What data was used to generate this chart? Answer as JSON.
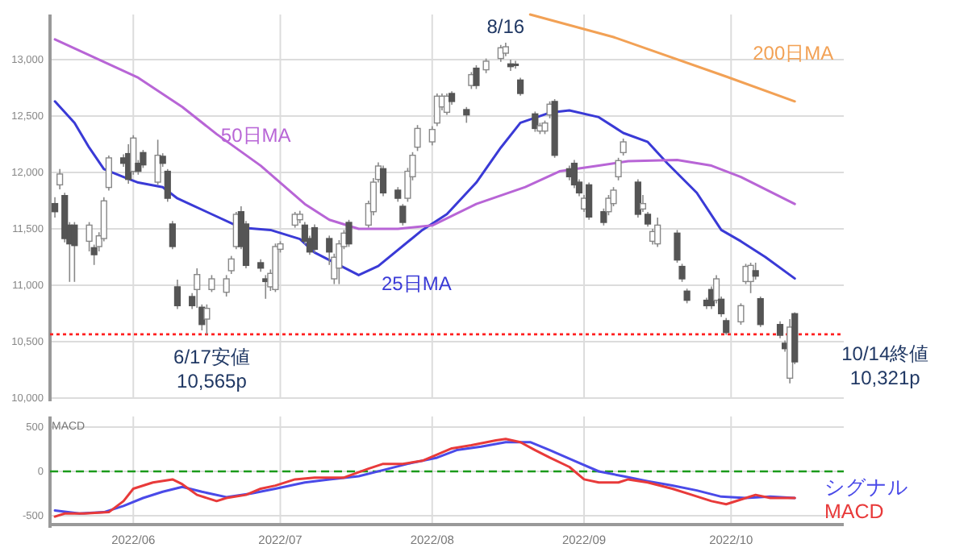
{
  "chart_data": [
    {
      "type": "candlestick",
      "xlim": [
        "2022-05-15",
        "2022-10-24"
      ],
      "ylim": [
        10000,
        13400
      ],
      "yticks": [
        {
          "value": 10000,
          "label": "10,000"
        },
        {
          "value": 10500,
          "label": "10,500"
        },
        {
          "value": 11000,
          "label": "11,000"
        },
        {
          "value": 11500,
          "label": "11,500"
        },
        {
          "value": 12000,
          "label": "12,000"
        },
        {
          "value": 12500,
          "label": "12,500"
        },
        {
          "value": 13000,
          "label": "13,000"
        }
      ],
      "xticks": [
        {
          "value": "2022-06-01",
          "label": null
        },
        {
          "value": "2022-07-01",
          "label": null
        },
        {
          "value": "2022-08-01",
          "label": null
        },
        {
          "value": "2022-09-01",
          "label": null
        },
        {
          "value": "2022-10-01",
          "label": null
        }
      ],
      "tick_labels": "y",
      "grid": true,
      "x": [
        "2022-05-16",
        "2022-05-17",
        "2022-05-18",
        "2022-05-19",
        "2022-05-20",
        "2022-05-23",
        "2022-05-24",
        "2022-05-25",
        "2022-05-26",
        "2022-05-27",
        "2022-05-30",
        "2022-05-31",
        "2022-06-01",
        "2022-06-02",
        "2022-06-03",
        "2022-06-06",
        "2022-06-07",
        "2022-06-08",
        "2022-06-09",
        "2022-06-10",
        "2022-06-13",
        "2022-06-14",
        "2022-06-15",
        "2022-06-16",
        "2022-06-17",
        "2022-06-20",
        "2022-06-21",
        "2022-06-22",
        "2022-06-23",
        "2022-06-24",
        "2022-06-27",
        "2022-06-28",
        "2022-06-29",
        "2022-06-30",
        "2022-07-01",
        "2022-07-04",
        "2022-07-05",
        "2022-07-06",
        "2022-07-07",
        "2022-07-08",
        "2022-07-11",
        "2022-07-12",
        "2022-07-13",
        "2022-07-14",
        "2022-07-15",
        "2022-07-19",
        "2022-07-20",
        "2022-07-21",
        "2022-07-22",
        "2022-07-25",
        "2022-07-26",
        "2022-07-27",
        "2022-07-28",
        "2022-07-29",
        "2022-08-01",
        "2022-08-02",
        "2022-08-03",
        "2022-08-04",
        "2022-08-05",
        "2022-08-08",
        "2022-08-09",
        "2022-08-10",
        "2022-08-12",
        "2022-08-15",
        "2022-08-16",
        "2022-08-17",
        "2022-08-18",
        "2022-08-19",
        "2022-08-22",
        "2022-08-23",
        "2022-08-24",
        "2022-08-25",
        "2022-08-26",
        "2022-08-29",
        "2022-08-30",
        "2022-08-31",
        "2022-09-01",
        "2022-09-02",
        "2022-09-05",
        "2022-09-06",
        "2022-09-07",
        "2022-09-08",
        "2022-09-09",
        "2022-09-12",
        "2022-09-13",
        "2022-09-14",
        "2022-09-15",
        "2022-09-16",
        "2022-09-20",
        "2022-09-21",
        "2022-09-22",
        "2022-09-26",
        "2022-09-27",
        "2022-09-28",
        "2022-09-29",
        "2022-09-30",
        "2022-10-03",
        "2022-10-04",
        "2022-10-05",
        "2022-10-06",
        "2022-10-07",
        "2022-10-11",
        "2022-10-12",
        "2022-10-13",
        "2022-10-14"
      ],
      "ohlc": [
        [
          11724,
          11780,
          11600,
          11652
        ],
        [
          11890,
          12030,
          11850,
          11986
        ],
        [
          11795,
          11820,
          11380,
          11414
        ],
        [
          11533,
          11560,
          11030,
          11367
        ],
        [
          11533,
          11560,
          11030,
          11352
        ],
        [
          11390,
          11560,
          11300,
          11533
        ],
        [
          11333,
          11360,
          11180,
          11271
        ],
        [
          11343,
          11470,
          11300,
          11438
        ],
        [
          11414,
          11780,
          11390,
          11748
        ],
        [
          11867,
          12150,
          11840,
          12129
        ],
        [
          12129,
          12160,
          12050,
          12081
        ],
        [
          12167,
          12250,
          11900,
          11938
        ],
        [
          12010,
          12330,
          11980,
          12305
        ],
        [
          12081,
          12110,
          11980,
          12010
        ],
        [
          12176,
          12200,
          12040,
          12067
        ],
        [
          11914,
          12290,
          11890,
          12152
        ],
        [
          12143,
          12170,
          12050,
          12081
        ],
        [
          12010,
          12030,
          11740,
          11771
        ],
        [
          11543,
          11570,
          11320,
          11343
        ],
        [
          10986,
          11050,
          10790,
          10819
        ],
        [
          10900,
          10930,
          10790,
          10819
        ],
        [
          10962,
          11150,
          10800,
          11095
        ],
        [
          10805,
          10830,
          10600,
          10652
        ],
        [
          10700,
          10830,
          10565,
          10795
        ],
        [
          10962,
          11090,
          10940,
          11057
        ],
        [
          10938,
          11090,
          10900,
          11057
        ],
        [
          11129,
          11260,
          11100,
          11233
        ],
        [
          11343,
          11650,
          11320,
          11629
        ],
        [
          11652,
          11700,
          11320,
          11343
        ],
        [
          11543,
          11570,
          11150,
          11176
        ],
        [
          11200,
          11230,
          11120,
          11152
        ],
        [
          11057,
          11090,
          10880,
          11033
        ],
        [
          10986,
          11140,
          10950,
          11105
        ],
        [
          10962,
          11370,
          10940,
          11343
        ],
        [
          11319,
          11390,
          11290,
          11367
        ],
        [
          11533,
          11650,
          11510,
          11629
        ],
        [
          11581,
          11660,
          11550,
          11629
        ],
        [
          11533,
          11560,
          11360,
          11390
        ],
        [
          11414,
          11440,
          11270,
          11295
        ],
        [
          11510,
          11540,
          11290,
          11319
        ],
        [
          11414,
          11440,
          11180,
          11295
        ],
        [
          11057,
          11280,
          11010,
          11248
        ],
        [
          11152,
          11400,
          11010,
          11367
        ],
        [
          11343,
          11490,
          11320,
          11462
        ],
        [
          11557,
          11580,
          11340,
          11367
        ],
        [
          11533,
          11750,
          11510,
          11724
        ],
        [
          11652,
          11950,
          11620,
          11914
        ],
        [
          11938,
          12090,
          11910,
          12057
        ],
        [
          12033,
          12060,
          11790,
          11819
        ],
        [
          11843,
          11870,
          11740,
          11771
        ],
        [
          11700,
          11720,
          11530,
          11557
        ],
        [
          11771,
          12040,
          11740,
          12010
        ],
        [
          11962,
          12180,
          11930,
          12152
        ],
        [
          12224,
          12420,
          12190,
          12390
        ],
        [
          12271,
          12410,
          12240,
          12381
        ],
        [
          12438,
          12700,
          12410,
          12676
        ],
        [
          12581,
          12700,
          12550,
          12676
        ],
        [
          12533,
          12700,
          12510,
          12676
        ],
        [
          12700,
          12720,
          12600,
          12629
        ],
        [
          12557,
          12580,
          12440,
          12510
        ],
        [
          12771,
          12890,
          12740,
          12867
        ],
        [
          12924,
          12950,
          12740,
          12771
        ],
        [
          12910,
          13010,
          12880,
          12986
        ],
        [
          13010,
          13130,
          12980,
          13105
        ],
        [
          13057,
          13150,
          13030,
          13114
        ],
        [
          12962,
          13000,
          12900,
          12938
        ],
        [
          12960,
          12990,
          12920,
          12948
        ],
        [
          12819,
          12840,
          12680,
          12700
        ],
        [
          12519,
          12540,
          12360,
          12390
        ],
        [
          12367,
          12440,
          12340,
          12414
        ],
        [
          12367,
          12460,
          12340,
          12438
        ],
        [
          12510,
          12630,
          12480,
          12605
        ],
        [
          12629,
          12650,
          12130,
          12152
        ],
        [
          12033,
          12060,
          11930,
          11962
        ],
        [
          12081,
          12110,
          11860,
          11890
        ],
        [
          11914,
          11940,
          11790,
          11819
        ],
        [
          11676,
          11800,
          11650,
          11771
        ],
        [
          11890,
          11910,
          11580,
          11605
        ],
        [
          11652,
          11680,
          11530,
          11557
        ],
        [
          11652,
          11800,
          11620,
          11771
        ],
        [
          11724,
          11870,
          11700,
          11843
        ],
        [
          11962,
          12130,
          11930,
          12105
        ],
        [
          12176,
          12300,
          12150,
          12271
        ],
        [
          11914,
          11940,
          11600,
          11629
        ],
        [
          11676,
          11800,
          11650,
          11724
        ],
        [
          11629,
          11650,
          11520,
          11543
        ],
        [
          11390,
          11500,
          11360,
          11476
        ],
        [
          11367,
          11600,
          11340,
          11533
        ],
        [
          11462,
          11490,
          11200,
          11224
        ],
        [
          11167,
          11190,
          11030,
          11057
        ],
        [
          10948,
          10970,
          10840,
          10867
        ],
        [
          10867,
          10890,
          10790,
          10819
        ],
        [
          10962,
          10990,
          10790,
          10819
        ],
        [
          10867,
          11090,
          10840,
          11057
        ],
        [
          10876,
          10900,
          10720,
          10748
        ],
        [
          10686,
          10710,
          10560,
          10581
        ],
        [
          10676,
          10840,
          10650,
          10819
        ],
        [
          11033,
          11190,
          11010,
          11167
        ],
        [
          11033,
          11200,
          10930,
          11176
        ],
        [
          11129,
          11200,
          11050,
          11081
        ],
        [
          10881,
          10900,
          10630,
          10652
        ],
        [
          10652,
          10680,
          10530,
          10557
        ],
        [
          10486,
          10510,
          10410,
          10438
        ],
        [
          10176,
          10700,
          10130,
          10629
        ],
        [
          10748,
          10760,
          10300,
          10321
        ]
      ],
      "series": [
        {
          "name": "25日MA",
          "type": "line",
          "color": "#3a3ad6",
          "x": [
            "2022-05-16",
            "2022-05-20",
            "2022-05-23",
            "2022-05-26",
            "2022-05-30",
            "2022-06-02",
            "2022-06-07",
            "2022-06-10",
            "2022-06-16",
            "2022-06-23",
            "2022-06-29",
            "2022-07-05",
            "2022-07-08",
            "2022-07-17",
            "2022-07-21",
            "2022-07-30",
            "2022-08-04",
            "2022-08-10",
            "2022-08-15",
            "2022-08-19",
            "2022-08-25",
            "2022-08-29",
            "2022-09-04",
            "2022-09-09",
            "2022-09-14",
            "2022-09-18",
            "2022-09-24",
            "2022-09-29",
            "2022-10-03",
            "2022-10-08",
            "2022-10-14"
          ],
          "values": [
            12630,
            12440,
            12220,
            12030,
            11960,
            11910,
            11870,
            11770,
            11650,
            11510,
            11490,
            11410,
            11290,
            11090,
            11170,
            11490,
            11630,
            11910,
            12220,
            12440,
            12530,
            12550,
            12490,
            12350,
            12270,
            12080,
            11820,
            11490,
            11390,
            11250,
            11060
          ]
        },
        {
          "name": "50日MA",
          "type": "line",
          "color": "#b865d6",
          "x": [
            "2022-05-16",
            "2022-05-22",
            "2022-06-02",
            "2022-06-11",
            "2022-06-18",
            "2022-06-27",
            "2022-07-06",
            "2022-07-11",
            "2022-07-17",
            "2022-07-25",
            "2022-08-01",
            "2022-08-10",
            "2022-08-20",
            "2022-08-27",
            "2022-09-04",
            "2022-09-10",
            "2022-09-20",
            "2022-09-27",
            "2022-10-03",
            "2022-10-14"
          ],
          "values": [
            13180,
            13060,
            12840,
            12580,
            12340,
            12060,
            11720,
            11580,
            11500,
            11500,
            11530,
            11720,
            11870,
            12010,
            12060,
            12100,
            12110,
            12060,
            11960,
            11720
          ]
        },
        {
          "name": "200日MA",
          "type": "line",
          "color": "#f2a155",
          "x": [
            "2022-08-21",
            "2022-09-07",
            "2022-09-30",
            "2022-10-14"
          ],
          "values": [
            13400,
            13200,
            12850,
            12630
          ]
        }
      ],
      "ref_lines": [
        {
          "axis": "y",
          "value": 10565,
          "color": "#ff2020",
          "line_style": "dotted"
        }
      ],
      "annotations": [
        {
          "text": "8/16",
          "x": "2022-08-16",
          "y": 13150
        },
        {
          "text": "6/17安値\n10,565p",
          "x": "2022-06-17",
          "y": 10565
        },
        {
          "text": "10/14終値\n10,321p",
          "x": "2022-10-14",
          "y": 10321
        }
      ]
    },
    {
      "type": "line",
      "title": "MACD",
      "xlim": [
        "2022-05-15",
        "2022-10-24"
      ],
      "ylim": [
        -600,
        620
      ],
      "yticks": [
        -500,
        0,
        500
      ],
      "xticks": [
        {
          "value": "2022-06-01",
          "label": "2022/06"
        },
        {
          "value": "2022-07-01",
          "label": "2022/07"
        },
        {
          "value": "2022-08-01",
          "label": "2022/08"
        },
        {
          "value": "2022-09-01",
          "label": "2022/09"
        },
        {
          "value": "2022-10-01",
          "label": "2022/10"
        }
      ],
      "grid": true,
      "legend": "right",
      "series": [
        {
          "name": "シグナル",
          "color": "#4a4ae8",
          "x": [
            "2022-05-16",
            "2022-05-21",
            "2022-05-26",
            "2022-05-30",
            "2022-06-03",
            "2022-06-07",
            "2022-06-11",
            "2022-06-15",
            "2022-06-20",
            "2022-06-25",
            "2022-06-30",
            "2022-07-06",
            "2022-07-11",
            "2022-07-17",
            "2022-07-22",
            "2022-07-27",
            "2022-08-02",
            "2022-08-06",
            "2022-08-11",
            "2022-08-16",
            "2022-08-21",
            "2022-08-25",
            "2022-08-30",
            "2022-09-04",
            "2022-09-09",
            "2022-09-14",
            "2022-09-19",
            "2022-09-24",
            "2022-09-29",
            "2022-10-04",
            "2022-10-09",
            "2022-10-14"
          ],
          "values": [
            -440,
            -475,
            -460,
            -390,
            -300,
            -230,
            -175,
            -230,
            -290,
            -250,
            -195,
            -125,
            -90,
            -55,
            15,
            85,
            155,
            240,
            280,
            330,
            330,
            240,
            120,
            0,
            -55,
            -110,
            -160,
            -215,
            -285,
            -300,
            -285,
            -300
          ]
        },
        {
          "name": "MACD",
          "color": "#e83a3a",
          "x": [
            "2022-05-16",
            "2022-05-18",
            "2022-05-22",
            "2022-05-27",
            "2022-05-30",
            "2022-06-01",
            "2022-06-05",
            "2022-06-09",
            "2022-06-11",
            "2022-06-14",
            "2022-06-18",
            "2022-06-20",
            "2022-06-24",
            "2022-06-27",
            "2022-06-30",
            "2022-07-04",
            "2022-07-08",
            "2022-07-14",
            "2022-07-19",
            "2022-07-22",
            "2022-07-26",
            "2022-07-30",
            "2022-08-02",
            "2022-08-05",
            "2022-08-09",
            "2022-08-14",
            "2022-08-16",
            "2022-08-19",
            "2022-08-22",
            "2022-08-25",
            "2022-08-29",
            "2022-09-01",
            "2022-09-04",
            "2022-09-08",
            "2022-09-10",
            "2022-09-14",
            "2022-09-19",
            "2022-09-23",
            "2022-09-27",
            "2022-09-30",
            "2022-10-04",
            "2022-10-06",
            "2022-10-09",
            "2022-10-14"
          ],
          "values": [
            -510,
            -475,
            -475,
            -460,
            -335,
            -195,
            -125,
            -90,
            -145,
            -265,
            -335,
            -300,
            -265,
            -195,
            -160,
            -90,
            -70,
            -70,
            30,
            85,
            85,
            120,
            190,
            260,
            295,
            350,
            365,
            330,
            240,
            155,
            50,
            -90,
            -125,
            -125,
            -90,
            -125,
            -195,
            -265,
            -335,
            -370,
            -300,
            -265,
            -300,
            -300
          ]
        }
      ],
      "ref_lines": [
        {
          "axis": "y",
          "value": 0,
          "color": "#1a9a1a",
          "line_style": "dashed"
        }
      ]
    }
  ]
}
